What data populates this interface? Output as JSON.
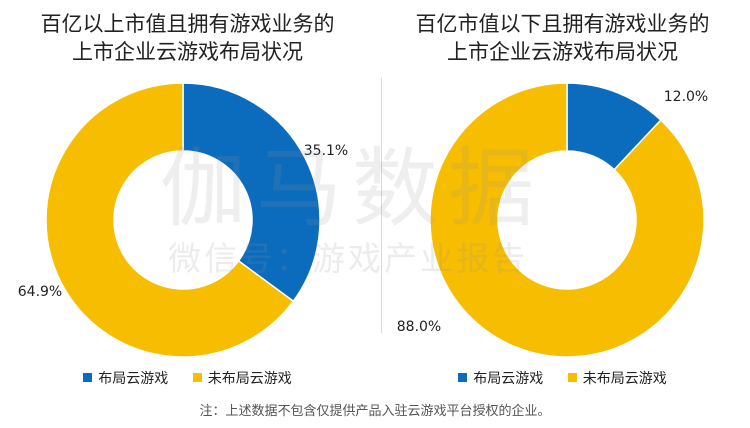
{
  "chart_data": [
    {
      "type": "pie",
      "title": [
        "百亿以上市值且拥有游戏业务的",
        "上市企业云游戏布局状况"
      ],
      "categories": [
        "布局云游戏",
        "未布局云游戏"
      ],
      "values": [
        35.1,
        64.9
      ],
      "labels": [
        "35.1%",
        "64.9%"
      ],
      "colors": [
        "#0b6bbd",
        "#f7bd00"
      ],
      "legend_position": "bottom"
    },
    {
      "type": "pie",
      "title": [
        "百亿市值以下且拥有游戏业务的",
        "上市企业云游戏布局状况"
      ],
      "categories": [
        "布局云游戏",
        "未布局云游戏"
      ],
      "values": [
        12.0,
        88.0
      ],
      "labels": [
        "12.0%",
        "88.0%"
      ],
      "colors": [
        "#0b6bbd",
        "#f7bd00"
      ],
      "legend_position": "bottom"
    }
  ],
  "watermark": {
    "line1": "伽马数据",
    "line2": "微信号：游戏产业报告"
  },
  "note": "注：上述数据不包含仅提供产品入驻云游戏平台授权的企业。"
}
